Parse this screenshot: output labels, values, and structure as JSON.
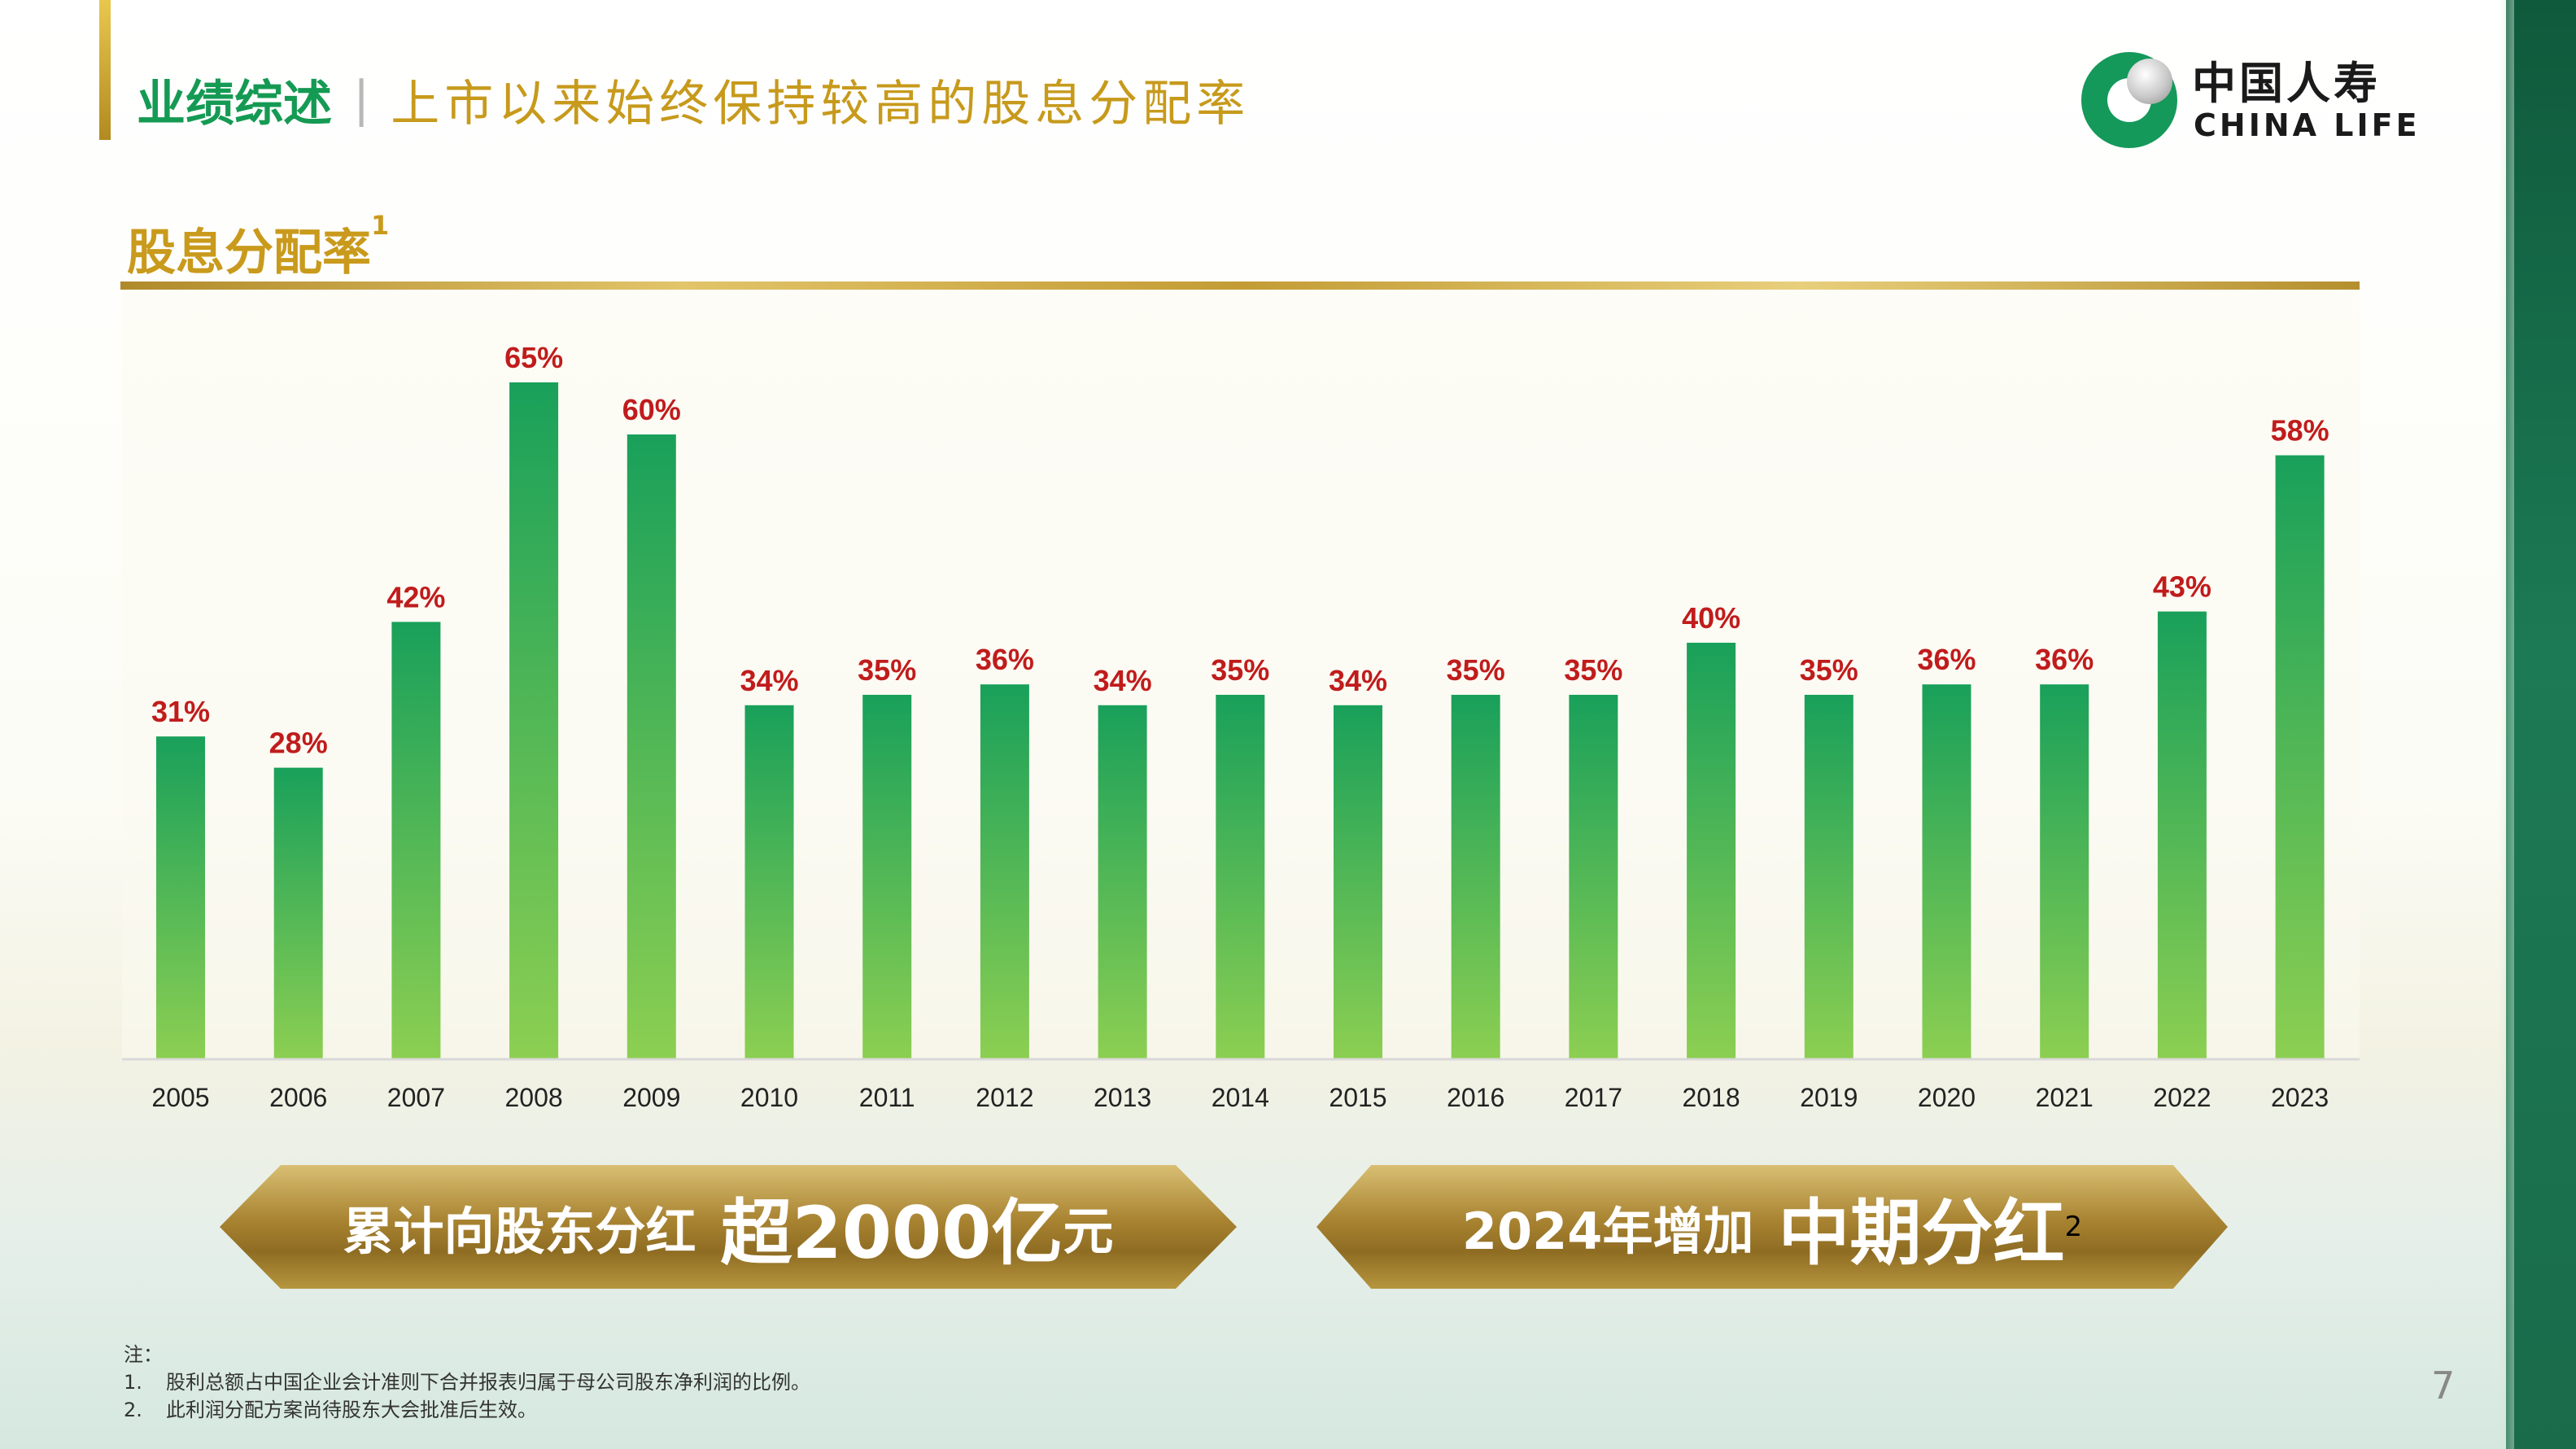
{
  "header": {
    "main_title": "业绩综述",
    "separator": "|",
    "subtitle": "上市以来始终保持较高的股息分配率"
  },
  "logo": {
    "cn": "中国人寿",
    "en": "CHINA LIFE"
  },
  "section": {
    "title": "股息分配率",
    "footnote_mark": "1"
  },
  "chart_data": {
    "type": "bar",
    "title": "股息分配率",
    "categories": [
      "2005",
      "2006",
      "2007",
      "2008",
      "2009",
      "2010",
      "2011",
      "2012",
      "2013",
      "2014",
      "2015",
      "2016",
      "2017",
      "2018",
      "2019",
      "2020",
      "2021",
      "2022",
      "2023"
    ],
    "values": [
      31,
      28,
      42,
      65,
      60,
      34,
      35,
      36,
      34,
      35,
      34,
      35,
      35,
      40,
      35,
      36,
      36,
      43,
      58
    ],
    "value_labels": [
      "31%",
      "28%",
      "42%",
      "65%",
      "60%",
      "34%",
      "35%",
      "36%",
      "34%",
      "35%",
      "34%",
      "35%",
      "35%",
      "40%",
      "35%",
      "36%",
      "36%",
      "43%",
      "58%"
    ],
    "ylim": [
      0,
      65
    ],
    "grid": false,
    "colors": {
      "bar_top": "#19a05a",
      "bar_bottom": "#8ccf52",
      "label": "#c01c1c"
    }
  },
  "banners": [
    {
      "a": "累计向股东分红",
      "b": "超2000亿",
      "c": "元",
      "sup": ""
    },
    {
      "a": "2024年增加",
      "b": "中期分红",
      "c": "",
      "sup": "2"
    }
  ],
  "notes": {
    "title": "注：",
    "items": [
      {
        "num": "1.",
        "text": "股利总额占中国企业会计准则下合并报表归属于母公司股东净利润的比例。"
      },
      {
        "num": "2.",
        "text": "此利润分配方案尚待股东大会批准后生效。"
      }
    ]
  },
  "page_number": "7"
}
